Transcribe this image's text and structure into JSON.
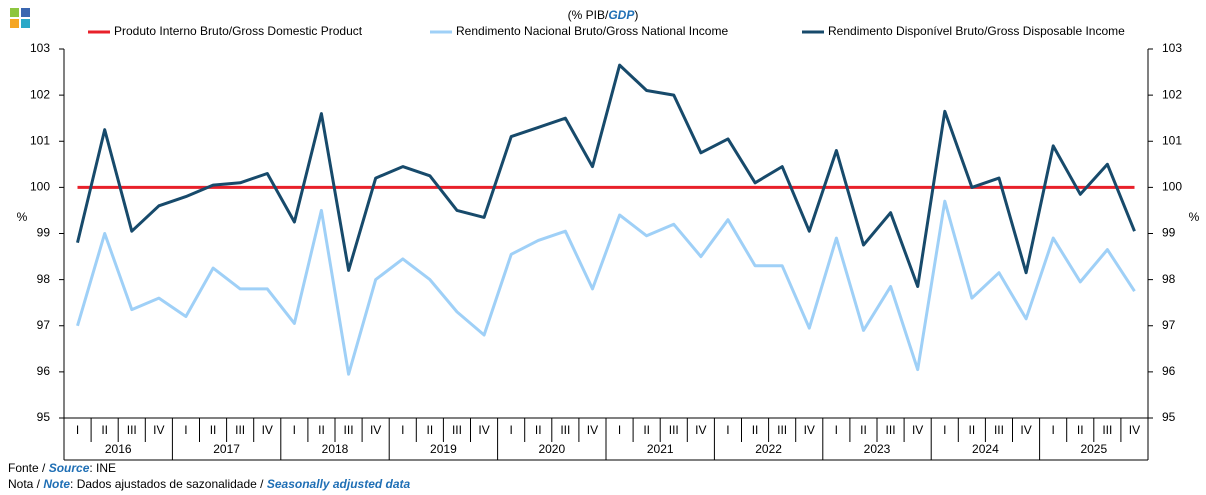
{
  "chart_data": {
    "type": "line",
    "title_parts": [
      "(% PIB/",
      "GDP",
      ")"
    ],
    "y_label": "%",
    "y2_label": "%",
    "categories": [
      "I",
      "II",
      "III",
      "IV",
      "I",
      "II",
      "III",
      "IV",
      "I",
      "II",
      "III",
      "IV",
      "I",
      "II",
      "III",
      "IV",
      "I",
      "II",
      "III",
      "IV",
      "I",
      "II",
      "III",
      "IV",
      "I",
      "II",
      "III",
      "IV",
      "I",
      "II",
      "III",
      "IV",
      "I",
      "II",
      "III",
      "IV",
      "I",
      "II",
      "III",
      "IV"
    ],
    "years": [
      "2016",
      "2017",
      "2018",
      "2019",
      "2020",
      "2021",
      "2022",
      "2023",
      "2024",
      "2025"
    ],
    "ylim": [
      95,
      103
    ],
    "yticks": [
      95,
      96,
      97,
      98,
      99,
      100,
      101,
      102,
      103
    ],
    "y2lim": [
      95,
      103
    ],
    "y2ticks": [
      95,
      96,
      97,
      98,
      99,
      100,
      101,
      102,
      103
    ],
    "legend": "top",
    "series": [
      {
        "name": "Produto Interno Bruto/Gross Domestic Product",
        "color": "#e8202a",
        "values": [
          100,
          100,
          100,
          100,
          100,
          100,
          100,
          100,
          100,
          100,
          100,
          100,
          100,
          100,
          100,
          100,
          100,
          100,
          100,
          100,
          100,
          100,
          100,
          100,
          100,
          100,
          100,
          100,
          100,
          100,
          100,
          100,
          100,
          100,
          100,
          100,
          100,
          100,
          100,
          100
        ]
      },
      {
        "name": "Rendimento Nacional Bruto/Gross National Income",
        "color": "#9fd0f7",
        "values": [
          97.0,
          99.0,
          97.35,
          97.6,
          97.2,
          98.25,
          97.8,
          97.8,
          97.05,
          99.5,
          95.95,
          98.0,
          98.45,
          98.0,
          97.3,
          96.8,
          98.55,
          98.85,
          99.05,
          97.8,
          99.4,
          98.95,
          99.2,
          98.5,
          99.3,
          98.3,
          98.3,
          96.95,
          98.9,
          96.9,
          97.85,
          96.05,
          99.7,
          97.6,
          98.15,
          97.15,
          98.9,
          97.95,
          98.65,
          97.75
        ]
      },
      {
        "name": "Rendimento Disponível Bruto/Gross Disposable Income",
        "color": "#174a6b",
        "values": [
          98.8,
          101.25,
          99.05,
          99.6,
          99.8,
          100.05,
          100.1,
          100.3,
          99.25,
          101.6,
          98.2,
          100.2,
          100.45,
          100.25,
          99.5,
          99.35,
          101.1,
          101.3,
          101.5,
          100.45,
          102.65,
          102.1,
          102.0,
          100.75,
          101.05,
          100.1,
          100.45,
          99.05,
          100.8,
          98.75,
          99.45,
          97.85,
          101.65,
          100.0,
          100.2,
          98.15,
          100.9,
          99.85,
          100.5,
          99.05
        ]
      }
    ],
    "notes": [
      [
        "Fonte / ",
        "Source",
        ":  INE"
      ],
      [
        "Nota / ",
        "Note",
        ": Dados ajustados de sazonalidade / ",
        "Seasonally adjusted data"
      ]
    ]
  }
}
